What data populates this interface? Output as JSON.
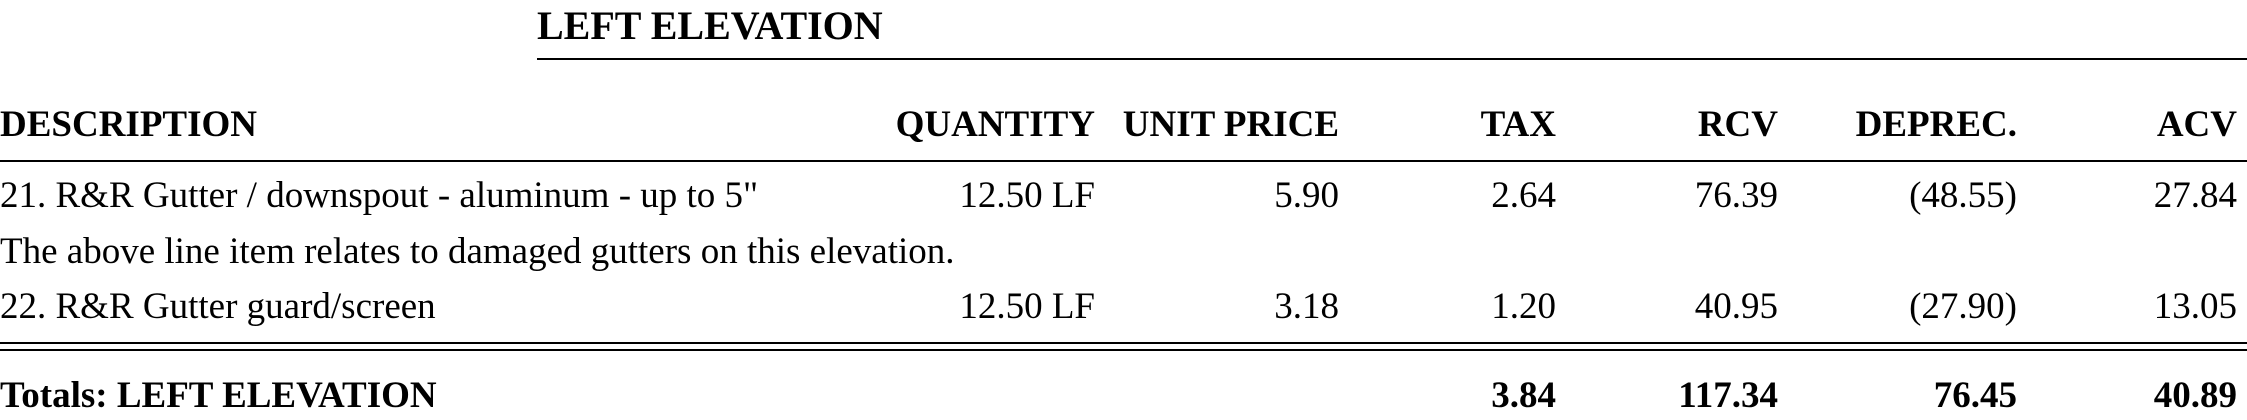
{
  "section": {
    "title": "LEFT ELEVATION"
  },
  "columns": {
    "description": "DESCRIPTION",
    "quantity": "QUANTITY",
    "unit_price": "UNIT PRICE",
    "tax": "TAX",
    "rcv": "RCV",
    "deprec": "DEPREC.",
    "acv": "ACV"
  },
  "rows": [
    {
      "description": "21.  R&R Gutter / downspout - aluminum - up to 5\"",
      "quantity": "12.50 LF",
      "unit_price": "5.90",
      "tax": "2.64",
      "rcv": "76.39",
      "deprec": "(48.55)",
      "acv": "27.84"
    },
    {
      "description": "22.  R&R Gutter guard/screen",
      "quantity": "12.50 LF",
      "unit_price": "3.18",
      "tax": "1.20",
      "rcv": "40.95",
      "deprec": "(27.90)",
      "acv": "13.05"
    }
  ],
  "note": "The above line item relates to damaged gutters on this elevation.",
  "totals": {
    "label": "Totals:  LEFT ELEVATION",
    "tax": "3.84",
    "rcv": "117.34",
    "deprec": "76.45",
    "acv": "40.89"
  }
}
